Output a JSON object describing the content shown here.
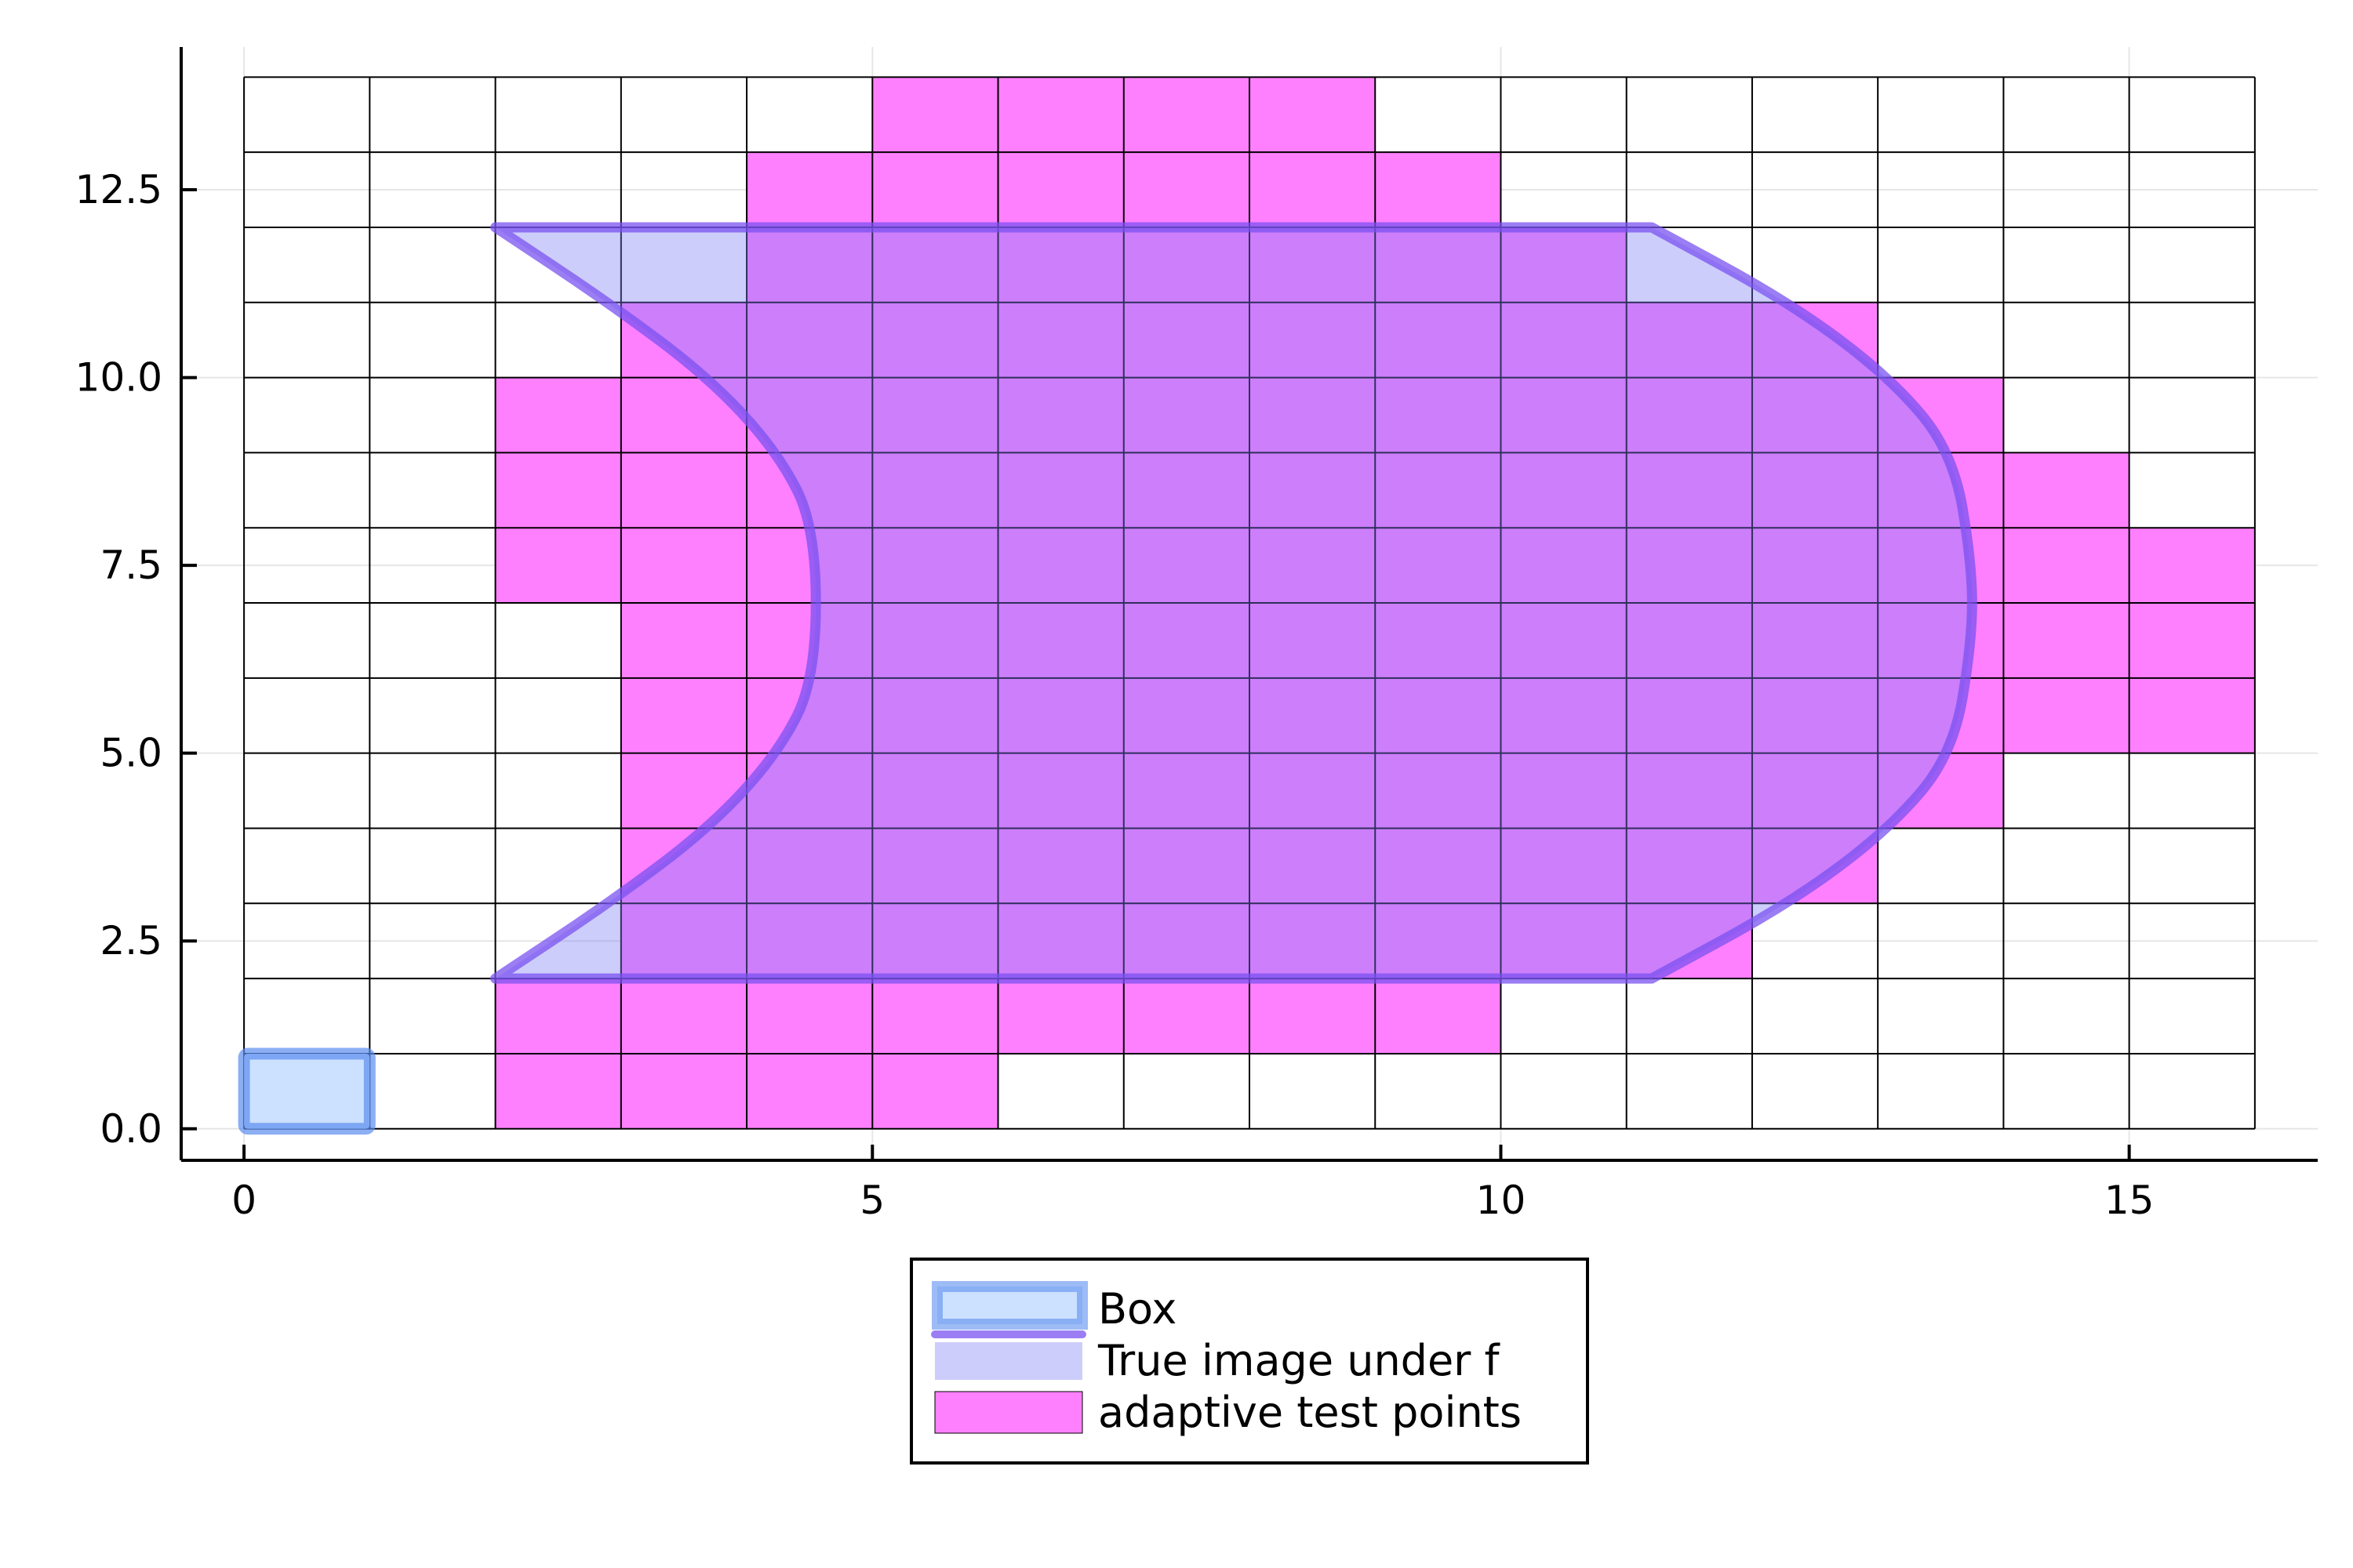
{
  "chart_data": {
    "type": "area",
    "title": "",
    "xlabel": "",
    "ylabel": "",
    "xlim": [
      -0.5,
      16.5
    ],
    "ylim": [
      -0.42,
      14.4
    ],
    "grid": true,
    "legend_position": "outer-bottom",
    "x_ticks": [
      {
        "value": 0,
        "label": "0"
      },
      {
        "value": 5,
        "label": "5"
      },
      {
        "value": 10,
        "label": "10"
      },
      {
        "value": 15,
        "label": "15"
      }
    ],
    "y_ticks": [
      {
        "value": 0,
        "label": "0.0"
      },
      {
        "value": 2.5,
        "label": "2.5"
      },
      {
        "value": 5,
        "label": "5.0"
      },
      {
        "value": 7.5,
        "label": "7.5"
      },
      {
        "value": 10,
        "label": "10.0"
      },
      {
        "value": 12.5,
        "label": "12.5"
      }
    ],
    "grid_cells": {
      "x_range": [
        0,
        16
      ],
      "y_range": [
        0,
        14
      ],
      "cell_size": 1
    },
    "series": [
      {
        "name": "Box",
        "kind": "rectangle",
        "x": [
          0,
          1
        ],
        "y": [
          0,
          1
        ],
        "fill_color": "#cce0ff",
        "stroke_color": "#5b8def"
      },
      {
        "name": "True image under f",
        "kind": "region",
        "upper_edge": {
          "y": 12,
          "x_from": 2,
          "x_to": 11.2
        },
        "lower_edge": {
          "y": 2,
          "x_from": 2,
          "x_to": 11.2
        },
        "left_boundary_x": [
          2,
          2.9,
          3.7,
          4.25,
          4.55,
          4.55,
          4.25,
          3.7,
          2.9,
          2
        ],
        "left_boundary_y": [
          12,
          11,
          10,
          9,
          8,
          6,
          5,
          4,
          3,
          2
        ],
        "right_boundary_x": [
          11.2,
          12.3,
          13.1,
          13.6,
          13.75,
          13.75,
          13.6,
          13.1,
          12.3,
          11.2
        ],
        "right_boundary_y": [
          12,
          11,
          10,
          9,
          7.5,
          6.5,
          5,
          4,
          3,
          2
        ],
        "fill_color": "#7b7bf5",
        "stroke_color": "#7a52f0"
      },
      {
        "name": "adaptive test points",
        "kind": "cells",
        "rows": [
          {
            "y": 0,
            "x_from": 2,
            "x_to": 6
          },
          {
            "y": 1,
            "x_from": 2,
            "x_to": 10
          },
          {
            "y": 2,
            "x_from": 3,
            "x_to": 12
          },
          {
            "y": 3,
            "x_from": 3,
            "x_to": 13
          },
          {
            "y": 4,
            "x_from": 3,
            "x_to": 14
          },
          {
            "y": 5,
            "x_from": 3,
            "x_to": 16
          },
          {
            "y": 6,
            "x_from": 3,
            "x_to": 16
          },
          {
            "y": 7,
            "x_from": 2,
            "x_to": 16
          },
          {
            "y": 8,
            "x_from": 2,
            "x_to": 15
          },
          {
            "y": 9,
            "x_from": 2,
            "x_to": 14
          },
          {
            "y": 10,
            "x_from": 3,
            "x_to": 13
          },
          {
            "y": 11,
            "x_from": 4,
            "x_to": 11
          },
          {
            "y": 12,
            "x_from": 4,
            "x_to": 10
          },
          {
            "y": 13,
            "x_from": 5,
            "x_to": 9
          }
        ],
        "fill_color": "#ff80ff"
      }
    ],
    "legend": [
      {
        "label": "Box"
      },
      {
        "label": "True image under f"
      },
      {
        "label": "adaptive test points"
      }
    ]
  }
}
